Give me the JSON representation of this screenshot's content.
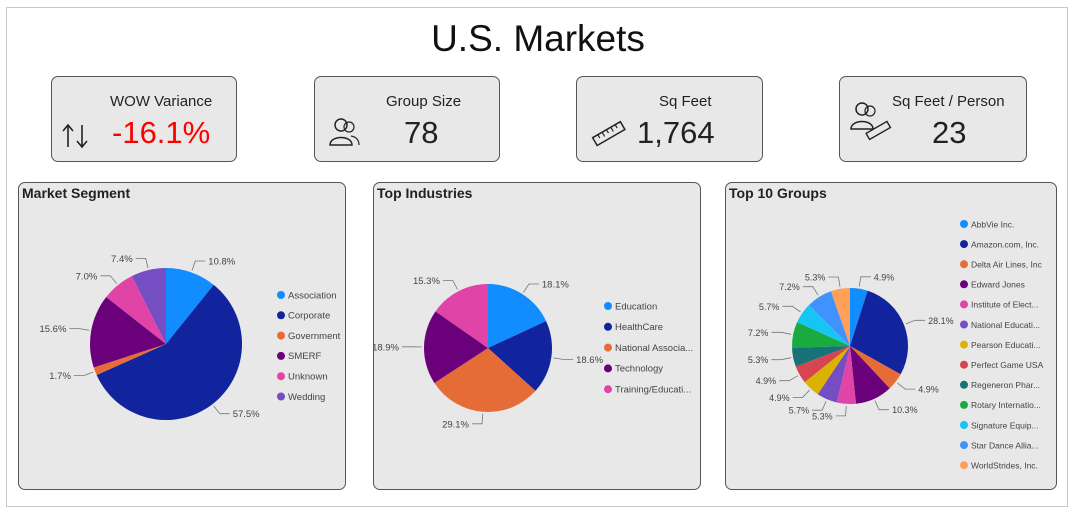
{
  "page": {
    "title": "U.S. Markets"
  },
  "kpis": {
    "wow": {
      "label": "WOW Variance",
      "value": "-16.1%",
      "color": "#ff0000",
      "icon": "up-down-arrows-icon"
    },
    "group_size": {
      "label": "Group Size",
      "value": "78",
      "icon": "people-icon"
    },
    "sq_feet": {
      "label": "Sq Feet",
      "value": "1,764",
      "icon": "ruler-icon"
    },
    "sq_feet_person": {
      "label": "Sq Feet / Person",
      "value": "23",
      "icon": "people-ruler-icon"
    }
  },
  "chart_data": [
    {
      "type": "pie",
      "title": "Market Segment",
      "legend_position": "right",
      "slices": [
        {
          "label": "Association",
          "value": 10.8,
          "data_label": "10.8%",
          "color": "#118dff"
        },
        {
          "label": "Corporate",
          "value": 57.5,
          "data_label": "57.5%",
          "color": "#12239e"
        },
        {
          "label": "Government",
          "value": 1.7,
          "data_label": "1.7%",
          "color": "#e66c37"
        },
        {
          "label": "SMERF",
          "value": 15.6,
          "data_label": "15.6%",
          "color": "#6b007b"
        },
        {
          "label": "Unknown",
          "value": 7.0,
          "data_label": "7.0%",
          "color": "#e044a7"
        },
        {
          "label": "Wedding",
          "value": 7.4,
          "data_label": "7.4%",
          "color": "#744ec2"
        }
      ]
    },
    {
      "type": "pie",
      "title": "Top Industries",
      "legend_position": "right",
      "slices": [
        {
          "label": "Education",
          "value": 18.1,
          "data_label": "18.1%",
          "color": "#118dff"
        },
        {
          "label": "HealthCare",
          "value": 18.6,
          "data_label": "18.6%",
          "color": "#12239e"
        },
        {
          "label": "National Associa...",
          "value": 29.1,
          "data_label": "29.1%",
          "color": "#e66c37"
        },
        {
          "label": "Technology",
          "value": 18.9,
          "data_label": "18.9%",
          "color": "#6b007b"
        },
        {
          "label": "Training/Educati...",
          "value": 15.3,
          "data_label": "15.3%",
          "color": "#e044a7"
        }
      ]
    },
    {
      "type": "pie",
      "title": "Top 10 Groups",
      "legend_position": "right",
      "slices": [
        {
          "label": "AbbVie Inc.",
          "value": 4.9,
          "data_label": "4.9%",
          "color": "#118dff"
        },
        {
          "label": "Amazon.com, Inc.",
          "value": 28.1,
          "data_label": "28.1%",
          "color": "#12239e"
        },
        {
          "label": "Delta Air Lines, Inc",
          "value": 4.9,
          "data_label": "4.9%",
          "color": "#e66c37"
        },
        {
          "label": "Edward Jones",
          "value": 10.3,
          "data_label": "10.3%",
          "color": "#6b007b"
        },
        {
          "label": "Institute of Elect...",
          "value": 5.3,
          "data_label": "5.3%",
          "color": "#e044a7"
        },
        {
          "label": "National Educati...",
          "value": 5.7,
          "data_label": "5.7%",
          "color": "#744ec2"
        },
        {
          "label": "Pearson Educati...",
          "value": 4.9,
          "data_label": "4.9%",
          "color": "#d9b300"
        },
        {
          "label": "Perfect Game USA",
          "value": 4.9,
          "data_label": "4.9%",
          "color": "#d64550"
        },
        {
          "label": "Regeneron Phar...",
          "value": 5.3,
          "data_label": "5.3%",
          "color": "#197278"
        },
        {
          "label": "Rotary Internatio...",
          "value": 7.2,
          "data_label": "7.2%",
          "color": "#1aab40"
        },
        {
          "label": "Signature Equip...",
          "value": 5.7,
          "data_label": "5.7%",
          "color": "#15c6f4"
        },
        {
          "label": "Star Dance Allia...",
          "value": 7.2,
          "data_label": "7.2%",
          "color": "#4092ff"
        },
        {
          "label": "WorldStrides, Inc.",
          "value": 5.3,
          "data_label": "5.3%",
          "color": "#ffa058"
        }
      ]
    }
  ]
}
